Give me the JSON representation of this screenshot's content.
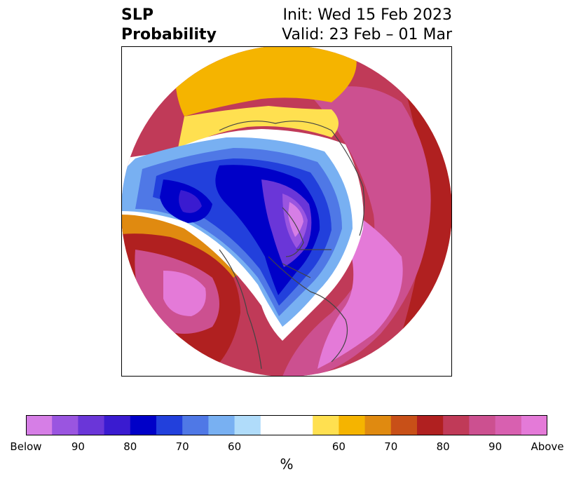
{
  "header": {
    "title_line1": "SLP",
    "title_line2": "Probability",
    "init_line": "Init: Wed 15 Feb 2023",
    "valid_line": "Valid: 23 Feb – 01 Mar"
  },
  "map": {
    "projection": "north-polar-stereographic",
    "colors": {
      "below": [
        "#d67ee6",
        "#9a55e0",
        "#6a36d8",
        "#3a1bd0",
        "#0000c8",
        "#2240dc",
        "#4f78e6",
        "#78b0f2",
        "#b0dcfa"
      ],
      "neutral": "#ffffff",
      "above": [
        "#ffe050",
        "#f5b400",
        "#e08a10",
        "#c85018",
        "#b02020",
        "#c03a58",
        "#cc5090",
        "#d860b0",
        "#e47ad8"
      ]
    }
  },
  "colorbar": {
    "segments": [
      "#d67ee6",
      "#9a55e0",
      "#6a36d8",
      "#3a1bd0",
      "#0000c8",
      "#2240dc",
      "#4f78e6",
      "#78b0f2",
      "#b0dcfa",
      "#ffffff",
      "#ffffff",
      "#ffe050",
      "#f5b400",
      "#e08a10",
      "#c85018",
      "#b02020",
      "#c03a58",
      "#cc5090",
      "#d860b0",
      "#e47ad8"
    ],
    "tick_labels": [
      "Below",
      "90",
      "80",
      "70",
      "60",
      "60",
      "70",
      "80",
      "90",
      "Above"
    ],
    "unit": "%"
  }
}
